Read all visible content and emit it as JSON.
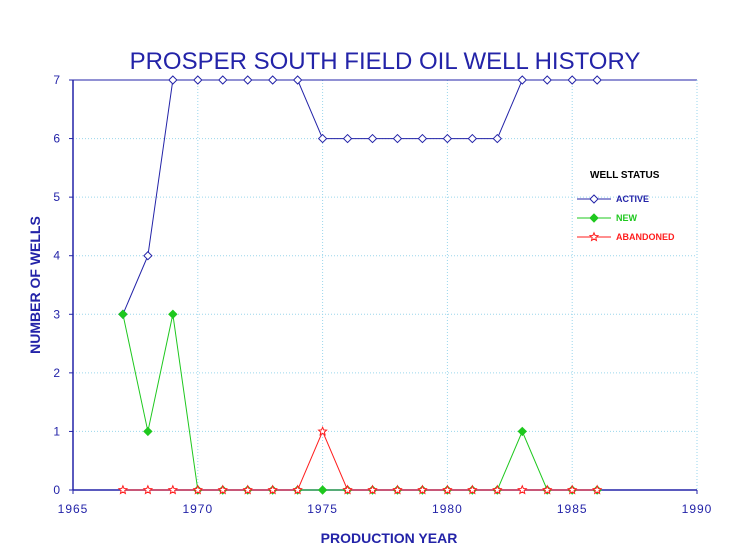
{
  "chart_data": {
    "type": "line",
    "title": "PROSPER SOUTH FIELD OIL WELL HISTORY",
    "xlabel": "PRODUCTION YEAR",
    "ylabel": "NUMBER OF WELLS",
    "xlim": [
      1965,
      1990
    ],
    "ylim": [
      0,
      7
    ],
    "xticks": [
      "1965",
      "1970",
      "1975",
      "1980",
      "1985",
      "1990"
    ],
    "yticks": [
      "0",
      "1",
      "2",
      "3",
      "4",
      "5",
      "6",
      "7"
    ],
    "grid": true,
    "legend_title": "WELL STATUS",
    "legend_position": "right",
    "x": [
      1967,
      1968,
      1969,
      1970,
      1971,
      1972,
      1973,
      1974,
      1975,
      1976,
      1977,
      1978,
      1979,
      1980,
      1981,
      1982,
      1983,
      1984,
      1985,
      1986
    ],
    "series": [
      {
        "name": "ACTIVE",
        "color": "#2323a8",
        "marker": "open-diamond",
        "values": [
          3,
          4,
          7,
          7,
          7,
          7,
          7,
          7,
          6,
          6,
          6,
          6,
          6,
          6,
          6,
          6,
          7,
          7,
          7,
          7
        ]
      },
      {
        "name": "NEW",
        "color": "#1ec81e",
        "marker": "filled-diamond",
        "values": [
          3,
          1,
          3,
          0,
          0,
          0,
          0,
          0,
          0,
          0,
          0,
          0,
          0,
          0,
          0,
          0,
          1,
          0,
          0,
          0
        ]
      },
      {
        "name": "ABANDONED",
        "color": "#ff1e1e",
        "marker": "open-star",
        "values": [
          0,
          0,
          0,
          0,
          0,
          0,
          0,
          0,
          1,
          0,
          0,
          0,
          0,
          0,
          0,
          0,
          0,
          0,
          0,
          0
        ]
      }
    ]
  }
}
